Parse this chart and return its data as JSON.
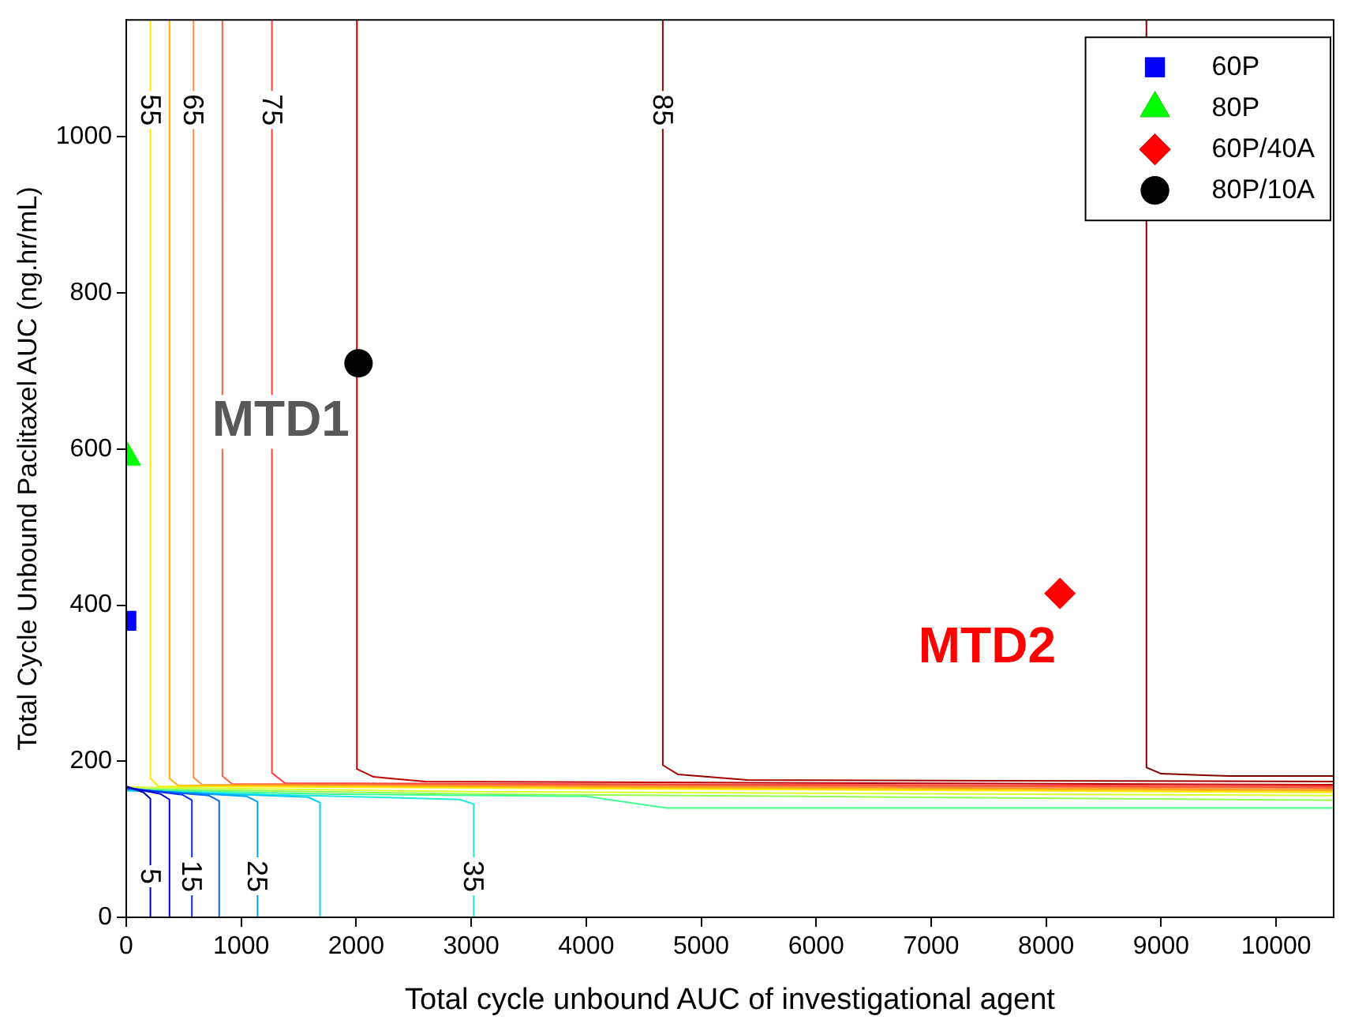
{
  "chart_data": {
    "type": "line",
    "xlabel": "Total cycle unbound AUC of investigational agent",
    "ylabel": "Total Cycle Unbound Paclitaxel AUC (ng.hr/mL)",
    "xlim": [
      0,
      10500
    ],
    "ylim": [
      0,
      1150
    ],
    "xticks": [
      0,
      1000,
      2000,
      3000,
      4000,
      5000,
      6000,
      7000,
      8000,
      9000,
      10000
    ],
    "yticks": [
      0,
      200,
      400,
      600,
      800,
      1000
    ],
    "grid": false,
    "legend": "top right",
    "marker": "none",
    "series": [
      {
        "name": "5",
        "color": "#0000a8",
        "x": [
          0,
          150,
          210,
          210
        ],
        "values": [
          168,
          160,
          152,
          0
        ]
      },
      {
        "color": "#0000e0",
        "x": [
          0,
          300,
          376,
          376
        ],
        "values": [
          167,
          158,
          151,
          0
        ]
      },
      {
        "name": "15",
        "color": "#0030ff",
        "x": [
          0,
          490,
          571,
          571
        ],
        "values": [
          166,
          157,
          150,
          0
        ]
      },
      {
        "color": "#0068ff",
        "x": [
          0,
          720,
          808,
          808
        ],
        "values": [
          165,
          156,
          149,
          0
        ]
      },
      {
        "name": "25",
        "color": "#00a0ff",
        "x": [
          0,
          1050,
          1142,
          1142
        ],
        "values": [
          164,
          155,
          148,
          0
        ]
      },
      {
        "color": "#00d0ff",
        "x": [
          0,
          1580,
          1685,
          1685
        ],
        "values": [
          163,
          154,
          147,
          0
        ]
      },
      {
        "name": "35",
        "color": "#20e8e0",
        "x": [
          0,
          2900,
          3022,
          3022
        ],
        "values": [
          162,
          151,
          145,
          0
        ]
      },
      {
        "color": "#40ff90",
        "x": [
          0,
          1700,
          4000,
          4700,
          10500
        ],
        "values": [
          164,
          158,
          155,
          140,
          140
        ]
      },
      {
        "color": "#90ff50",
        "x": [
          0,
          3000,
          10500
        ],
        "values": [
          165,
          158,
          150
        ]
      },
      {
        "color": "#d8ff30",
        "x": [
          0,
          3000,
          10500
        ],
        "values": [
          167,
          161,
          156
        ]
      },
      {
        "name": "55",
        "color": "#ffe800",
        "x": [
          210,
          210,
          280,
          10500
        ],
        "values": [
          1150,
          178,
          168,
          160
        ]
      },
      {
        "color": "#ffb000",
        "x": [
          376,
          376,
          450,
          10500
        ],
        "values": [
          1150,
          178,
          169,
          162
        ]
      },
      {
        "name": "65",
        "color": "#ff9040",
        "x": [
          585,
          585,
          660,
          10500
        ],
        "values": [
          1150,
          179,
          170,
          164
        ]
      },
      {
        "color": "#ff6030",
        "x": [
          836,
          836,
          920,
          10500
        ],
        "values": [
          1150,
          181,
          171,
          166
        ]
      },
      {
        "name": "75",
        "color": "#ff4040",
        "x": [
          1267,
          1267,
          1380,
          10500
        ],
        "values": [
          1150,
          185,
          172,
          168
        ]
      },
      {
        "color": "#c00000",
        "x": [
          2006,
          2006,
          2150,
          2600,
          10500
        ],
        "values": [
          1150,
          190,
          180,
          174,
          170
        ]
      },
      {
        "name": "85",
        "color": "#a00000",
        "x": [
          4666,
          4666,
          4800,
          5400,
          10500
        ],
        "values": [
          1150,
          195,
          183,
          176,
          174
        ]
      },
      {
        "color": "#800000",
        "x": [
          8872,
          8872,
          9000,
          9600,
          10500
        ],
        "values": [
          1150,
          192,
          184,
          181,
          181
        ]
      },
      {
        "type": "scatter",
        "name": "60P",
        "color": "#0000ff",
        "marker": "square",
        "x": [
          0
        ],
        "values": [
          380
        ]
      },
      {
        "type": "scatter",
        "name": "80P",
        "color": "#00ff00",
        "marker": "triangle",
        "x": [
          0
        ],
        "values": [
          590
        ]
      },
      {
        "type": "scatter",
        "name": "60P/40A",
        "color": "#ff0000",
        "marker": "diamond",
        "x": [
          8120
        ],
        "values": [
          415
        ]
      },
      {
        "type": "scatter",
        "name": "80P/10A",
        "color": "#000000",
        "marker": "circle",
        "x": [
          2020
        ],
        "values": [
          710
        ]
      }
    ],
    "annotations": [
      "MTD1",
      "MTD2"
    ]
  }
}
